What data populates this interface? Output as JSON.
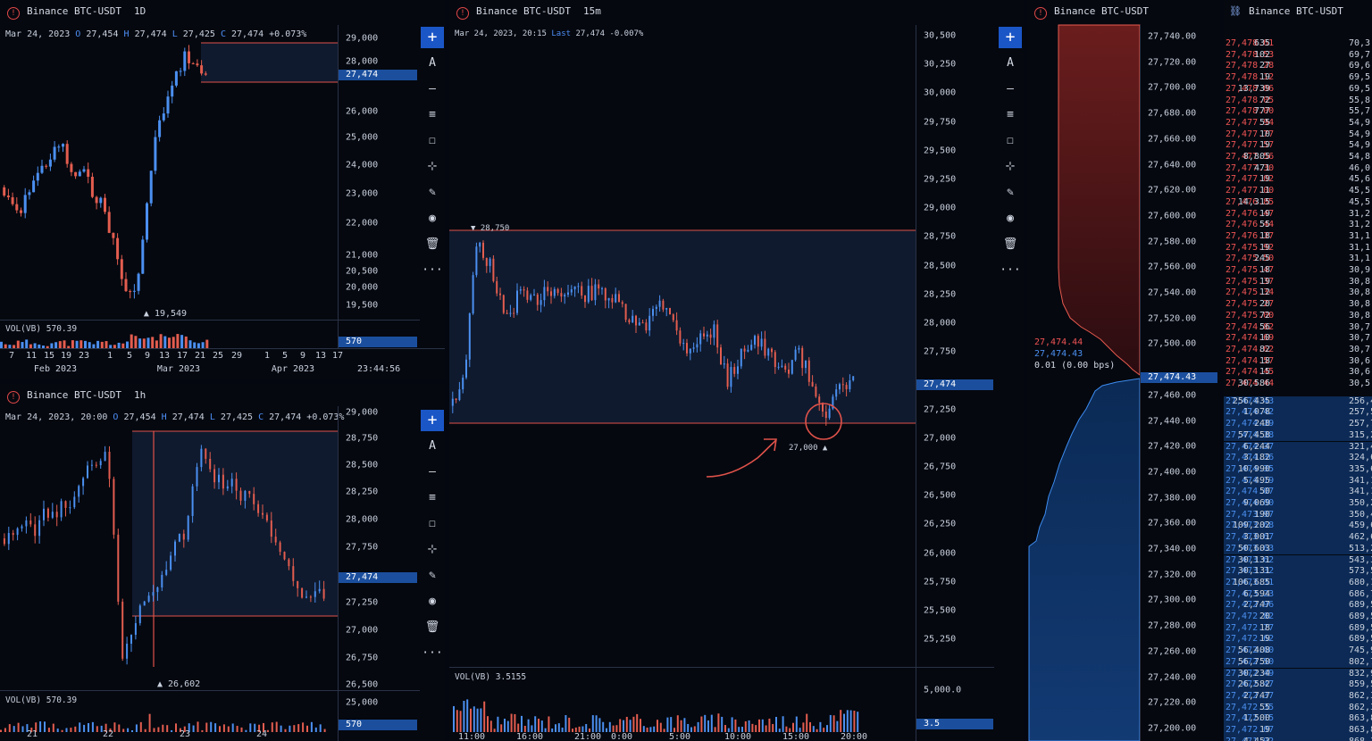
{
  "symbol": "Binance BTC-USDT",
  "colors": {
    "up": "#4b8ff0",
    "down": "#e35d4f",
    "accent": "#1b56c7",
    "line": "#e0524a"
  },
  "toolbar": {
    "items": [
      {
        "icon": "plus-icon",
        "glyph": "+"
      },
      {
        "icon": "text-icon",
        "glyph": "A"
      },
      {
        "icon": "horizontal-line-icon",
        "glyph": "–"
      },
      {
        "icon": "horizontal-lines-icon",
        "glyph": "≡"
      },
      {
        "icon": "rectangle-icon",
        "glyph": "☐"
      },
      {
        "icon": "measure-icon",
        "glyph": "⊹"
      },
      {
        "icon": "brush-icon",
        "glyph": "✎"
      },
      {
        "icon": "eye-icon",
        "glyph": "◉"
      },
      {
        "icon": "trash-icon",
        "glyph": "🗑"
      },
      {
        "icon": "more-icon",
        "glyph": "···"
      }
    ]
  },
  "panel_1d": {
    "timeframe": "1D",
    "ohlc": {
      "date": "Mar 24, 2023",
      "o": "27,454",
      "h": "27,474",
      "l": "27,425",
      "c": "27,474",
      "chg": "+0.073%"
    },
    "price_ticks": [
      "29,000",
      "28,000",
      "26,000",
      "25,000",
      "24,000",
      "23,000",
      "22,000",
      "21,000",
      "20,500",
      "20,000",
      "19,500"
    ],
    "last_price": "27,474",
    "low_marker": "19,549",
    "volume_label": "VOL(VB) 570.39",
    "volume_last": "570",
    "x_ticks": [
      "7",
      "11",
      "15",
      "19",
      "23",
      "1",
      "5",
      "9",
      "13",
      "17",
      "21",
      "25",
      "29",
      "1",
      "5",
      "9",
      "13",
      "17"
    ],
    "x_months": [
      "Feb 2023",
      "Mar 2023",
      "Apr 2023"
    ],
    "time": "23:44:56"
  },
  "panel_1h": {
    "timeframe": "1h",
    "ohlc": {
      "date": "Mar 24, 2023, 20:00",
      "o": "27,454",
      "h": "27,474",
      "l": "27,425",
      "c": "27,474",
      "chg": "+0.073%"
    },
    "price_ticks": [
      "29,000",
      "28,750",
      "28,500",
      "28,250",
      "28,000",
      "27,750",
      "27,250",
      "27,000",
      "26,750",
      "26,500",
      "25,000"
    ],
    "last_price": "27,474",
    "low_marker": "26,602",
    "volume_label": "VOL(VB) 570.39",
    "volume_last": "570",
    "x_ticks": [
      "21",
      "22",
      "23",
      "24"
    ]
  },
  "panel_15m": {
    "timeframe": "15m",
    "ohlc": {
      "date": "Mar 24, 2023, 20:15",
      "last_label": "Last",
      "last": "27,474",
      "chg": "-0.007%"
    },
    "price_ticks": [
      "30,500",
      "30,250",
      "30,000",
      "29,750",
      "29,500",
      "29,250",
      "29,000",
      "28,750",
      "28,500",
      "28,250",
      "28,000",
      "27,750",
      "27,250",
      "27,000",
      "26,750",
      "26,500",
      "26,250",
      "26,000",
      "25,750",
      "25,500",
      "25,250"
    ],
    "last_price": "27,474",
    "high_marker": "28,750",
    "low_marker": "27,000",
    "volume_label": "VOL(VB) 3.5155",
    "volume_tick": "5,000.0",
    "volume_last": "3.5",
    "x_ticks": [
      "11:00",
      "16:00",
      "21:00",
      "0:00",
      "5:00",
      "10:00",
      "15:00",
      "20:00"
    ]
  },
  "depth": {
    "price_ticks": [
      "27,740.00",
      "27,720.00",
      "27,700.00",
      "27,680.00",
      "27,660.00",
      "27,640.00",
      "27,620.00",
      "27,600.00",
      "27,580.00",
      "27,560.00",
      "27,540.00",
      "27,520.00",
      "27,500.00",
      "27,460.00",
      "27,440.00",
      "27,420.00",
      "27,400.00",
      "27,380.00",
      "27,360.00",
      "27,340.00",
      "27,320.00",
      "27,300.00",
      "27,280.00",
      "27,260.00",
      "27,240.00",
      "27,220.00",
      "27,200.00"
    ],
    "ask_price": "27,474.44",
    "bid_price": "27,474.43",
    "spread": "0.01 (0.00 bps)",
    "mid_label": "27,474.43"
  },
  "orderbook": {
    "asks": [
      [
        "27,478.61",
        "635",
        "70,3"
      ],
      [
        "27,478.53",
        "102",
        "69,7"
      ],
      [
        "27,478.28",
        "27",
        "69,6"
      ],
      [
        "27,478.12",
        "19",
        "69,5"
      ],
      [
        "27,478.06",
        "13,739",
        "69,5"
      ],
      [
        "27,478.05",
        "72",
        "55,8"
      ],
      [
        "27,478.00",
        "777",
        "55,7"
      ],
      [
        "27,477.94",
        "55",
        "54,9"
      ],
      [
        "27,477.77",
        "10",
        "54,9"
      ],
      [
        "27,477.57",
        "19",
        "54,9"
      ],
      [
        "27,477.56",
        "8,805",
        "54,8"
      ],
      [
        "27,477.30",
        "471",
        "46,0"
      ],
      [
        "27,477.02",
        "19",
        "45,6"
      ],
      [
        "27,477.00",
        "11",
        "45,5"
      ],
      [
        "27,476.85",
        "14,315",
        "45,5"
      ],
      [
        "27,476.47",
        "19",
        "31,2"
      ],
      [
        "27,476.44",
        "55",
        "31,2"
      ],
      [
        "27,476.37",
        "18",
        "31,1"
      ],
      [
        "27,475.92",
        "19",
        "31,1"
      ],
      [
        "27,475.50",
        "245",
        "31,1"
      ],
      [
        "27,475.47",
        "18",
        "30,9"
      ],
      [
        "27,475.37",
        "19",
        "30,8"
      ],
      [
        "27,475.34",
        "12",
        "30,8"
      ],
      [
        "27,475.27",
        "20",
        "30,8"
      ],
      [
        "27,475.00",
        "72",
        "30,8"
      ],
      [
        "27,474.82",
        "56",
        "30,7"
      ],
      [
        "27,474.69",
        "10",
        "30,7"
      ],
      [
        "27,474.62",
        "82",
        "30,7"
      ],
      [
        "27,474.57",
        "18",
        "30,6"
      ],
      [
        "27,474.45",
        "15",
        "30,6"
      ],
      [
        "27,474.44",
        "30,586",
        "30,5"
      ]
    ],
    "bids": [
      [
        "27,474.43",
        "256,435",
        "256,4"
      ],
      [
        "27,474.42",
        "1,078",
        "257,5"
      ],
      [
        "27,474.39",
        "248",
        "257,7"
      ],
      [
        "27,474.38",
        "57,458",
        "315,2"
      ],
      [
        "27,474.37",
        "6,244",
        "321,4"
      ],
      [
        "27,474.36",
        "3,182",
        "324,6"
      ],
      [
        "27,474.35",
        "10,990",
        "335,6"
      ],
      [
        "27,474.19",
        "5,495",
        "341,1"
      ],
      [
        "27,474.07",
        "50",
        "341,1"
      ],
      [
        "27,474.00",
        "9,069",
        "350,2"
      ],
      [
        "27,473.97",
        "190",
        "350,4"
      ],
      [
        "27,473.68",
        "109,202",
        "459,6"
      ],
      [
        "27,473.67",
        "3,001",
        "462,6"
      ],
      [
        "27,473.63",
        "50,603",
        "513,2"
      ],
      [
        "27,473.62",
        "30,131",
        "543,3"
      ],
      [
        "27,473.32",
        "30,131",
        "573,5"
      ],
      [
        "27,473.31",
        "106,685",
        "680,1"
      ],
      [
        "27,473.23",
        "6,594",
        "686,7"
      ],
      [
        "27,472.96",
        "2,747",
        "689,5"
      ],
      [
        "27,472.82",
        "20",
        "689,5"
      ],
      [
        "27,472.77",
        "18",
        "689,5"
      ],
      [
        "27,472.62",
        "19",
        "689,5"
      ],
      [
        "27,472.60",
        "56,408",
        "745,9"
      ],
      [
        "27,472.50",
        "56,750",
        "802,7"
      ],
      [
        "27,472.49",
        "30,234",
        "832,9"
      ],
      [
        "27,472.47",
        "26,582",
        "859,5"
      ],
      [
        "27,472.37",
        "2,747",
        "862,3"
      ],
      [
        "27,472.35",
        "55",
        "862,3"
      ],
      [
        "27,472.15",
        "1,500",
        "863,8"
      ],
      [
        "27,472.07",
        "19",
        "863,8"
      ],
      [
        "27,471.92",
        "4,453",
        "868,3"
      ]
    ]
  }
}
